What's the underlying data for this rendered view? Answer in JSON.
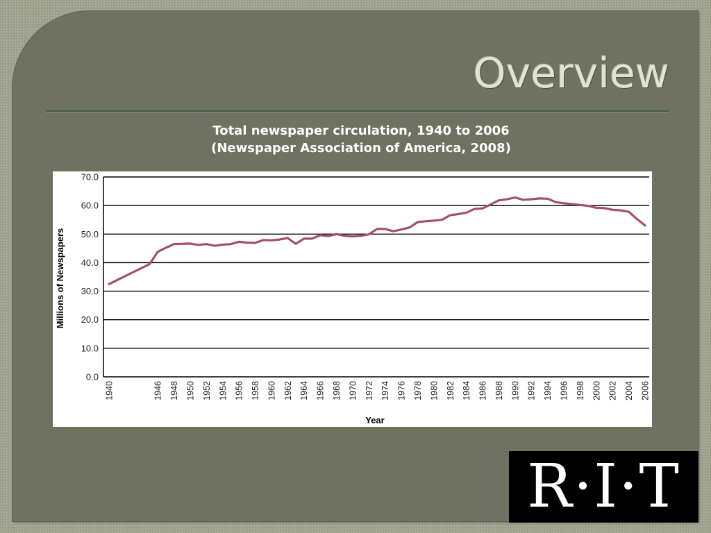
{
  "slide": {
    "title": "Overview",
    "caption_line1": "Total newspaper circulation, 1940 to 2006",
    "caption_line2": "(Newspaper Association of America, 2008)",
    "logo_text": "R·I·T"
  },
  "colors": {
    "slide_bg": "#6f7161",
    "title_text": "#dfe3cf",
    "series_line": "#a04f6c"
  },
  "chart_data": {
    "type": "line",
    "xlabel": "Year",
    "ylabel": "Millions of Newspapers",
    "xlim": [
      1940,
      2006
    ],
    "ylim": [
      0,
      70
    ],
    "y_ticks": [
      "0.0",
      "10.0",
      "20.0",
      "30.0",
      "40.0",
      "50.0",
      "60.0",
      "70.0"
    ],
    "x_ticks": [
      "1940",
      "1946",
      "1948",
      "1950",
      "1952",
      "1954",
      "1956",
      "1958",
      "1960",
      "1962",
      "1964",
      "1966",
      "1968",
      "1970",
      "1972",
      "1974",
      "1976",
      "1978",
      "1980",
      "1982",
      "1984",
      "1986",
      "1988",
      "1990",
      "1992",
      "1994",
      "1996",
      "1998",
      "2000",
      "2002",
      "2004",
      "2006"
    ],
    "grid": true,
    "series": [
      {
        "x": [
          1940,
          1945,
          1946,
          1947,
          1948,
          1949,
          1950,
          1951,
          1952,
          1953,
          1954,
          1955,
          1956,
          1957,
          1958,
          1959,
          1960,
          1961,
          1962,
          1963,
          1964,
          1965,
          1966,
          1967,
          1968,
          1969,
          1970,
          1971,
          1972,
          1973,
          1974,
          1975,
          1976,
          1977,
          1978,
          1979,
          1980,
          1981,
          1982,
          1983,
          1984,
          1985,
          1986,
          1987,
          1988,
          1989,
          1990,
          1991,
          1992,
          1993,
          1994,
          1995,
          1996,
          1997,
          1998,
          1999,
          2000,
          2001,
          2002,
          2003,
          2004,
          2005,
          2006
        ],
        "values": [
          32.5,
          39.5,
          43.8,
          45.2,
          46.5,
          46.6,
          46.7,
          46.2,
          46.5,
          45.9,
          46.3,
          46.5,
          47.3,
          47.0,
          46.9,
          47.9,
          47.8,
          48.1,
          48.6,
          46.6,
          48.4,
          48.4,
          49.6,
          49.3,
          50.0,
          49.4,
          49.2,
          49.4,
          49.9,
          51.8,
          51.8,
          51.0,
          51.6,
          52.3,
          54.2,
          54.5,
          54.7,
          55.0,
          56.6,
          57.0,
          57.5,
          58.8,
          59.0,
          60.4,
          61.8,
          62.2,
          62.8,
          62.0,
          62.2,
          62.5,
          62.4,
          61.2,
          60.8,
          60.5,
          60.2,
          59.9,
          59.2,
          59.1,
          58.5,
          58.3,
          57.8,
          55.3,
          53.0
        ]
      }
    ]
  }
}
